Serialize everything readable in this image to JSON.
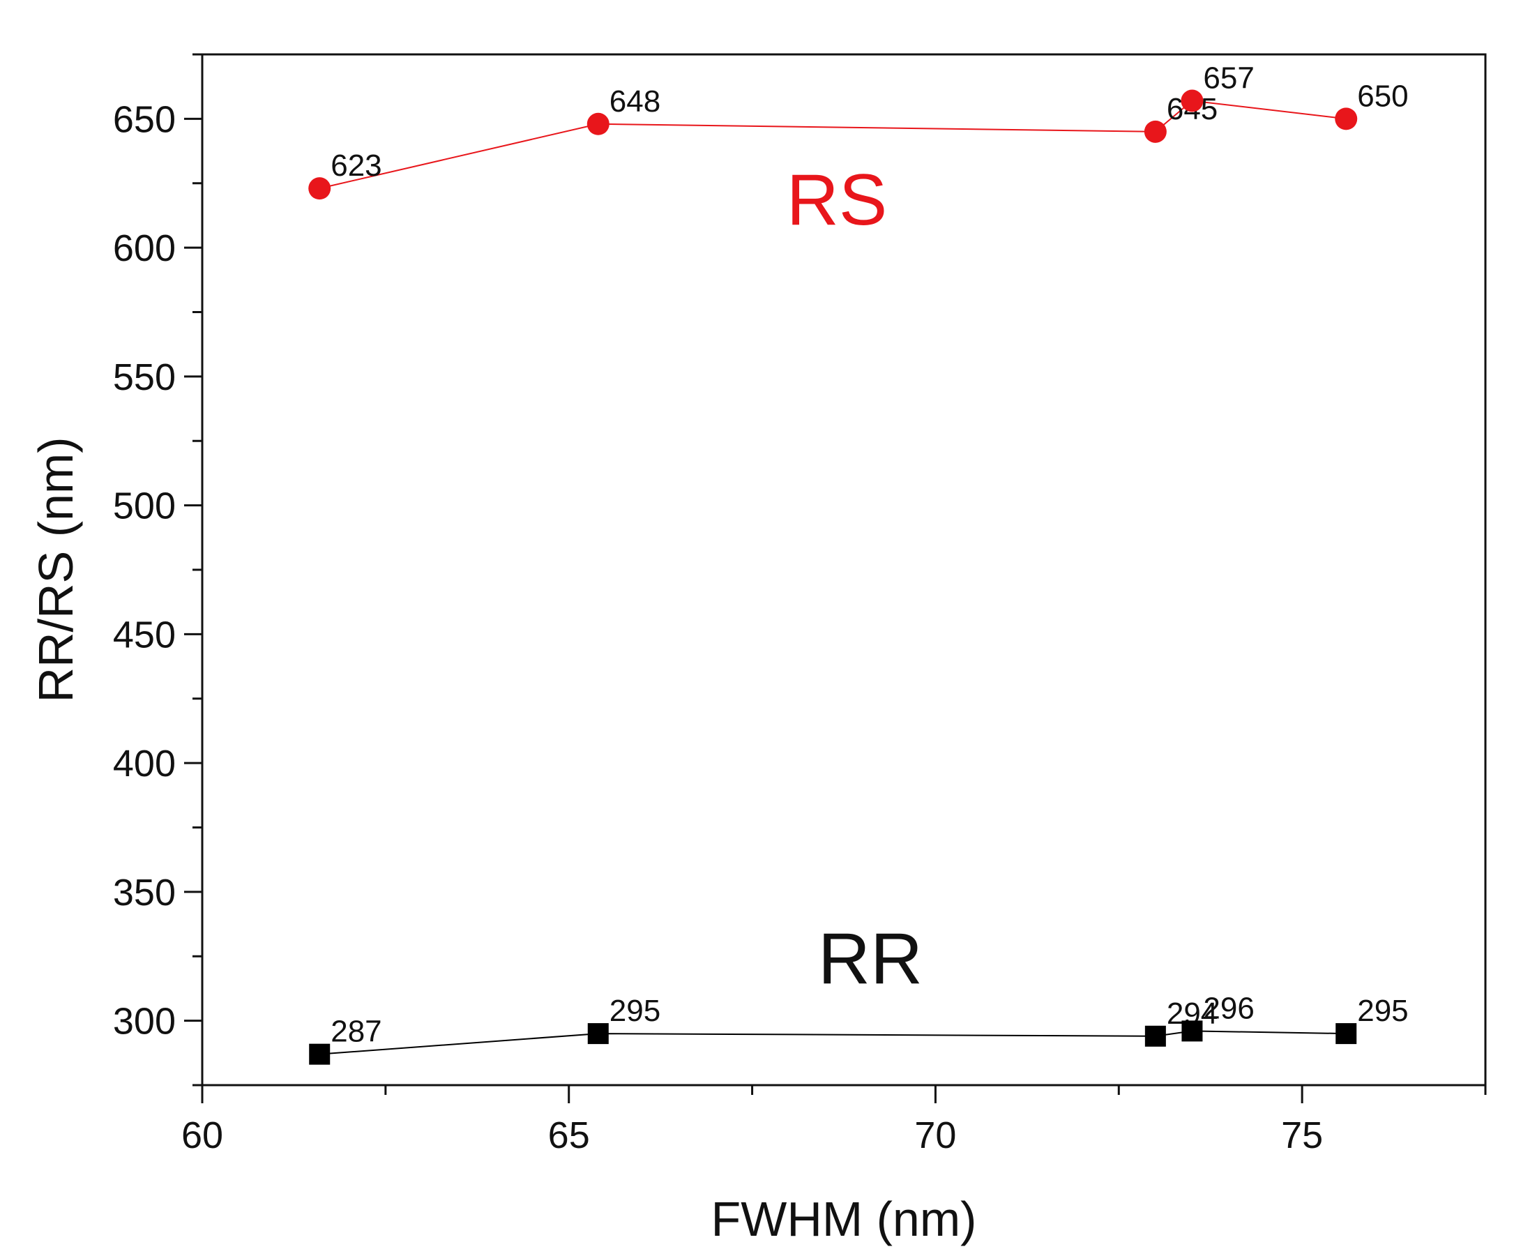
{
  "chart_data": {
    "type": "line",
    "title": "",
    "xlabel": "FWHM (nm)",
    "ylabel": "RR/RS (nm)",
    "xlim": [
      60,
      77.5
    ],
    "ylim": [
      275,
      675
    ],
    "x_ticks": [
      "60",
      "65",
      "70",
      "75"
    ],
    "y_ticks": [
      "300",
      "350",
      "400",
      "450",
      "500",
      "550",
      "600",
      "650"
    ],
    "grid": false,
    "x": [
      61.6,
      65.4,
      73.0,
      73.5,
      75.6
    ],
    "series": [
      {
        "name": "RS",
        "marker": "circle",
        "color": "#e8161b",
        "values": [
          623,
          648,
          645,
          657,
          650
        ],
        "labels": [
          "623",
          "648",
          "645",
          "657",
          "650"
        ]
      },
      {
        "name": "RR",
        "marker": "square",
        "color": "#000000",
        "values": [
          287,
          295,
          294,
          296,
          295
        ],
        "labels": [
          "287",
          "295",
          "294",
          "296",
          "295"
        ]
      }
    ]
  }
}
